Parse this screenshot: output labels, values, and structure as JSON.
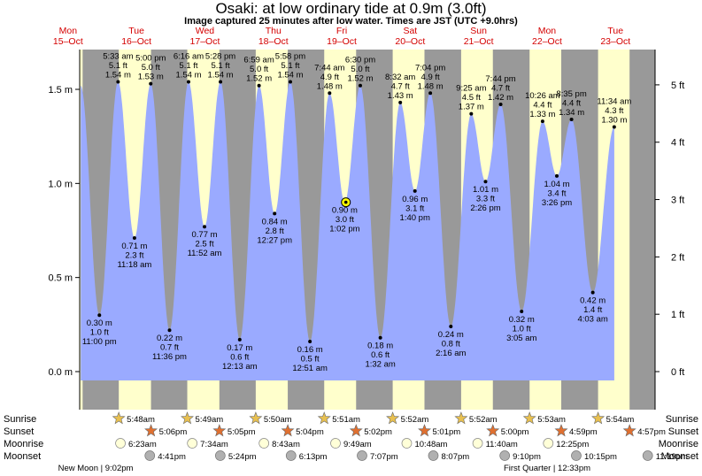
{
  "title": "Osaki: at low  ordinary tide at 0.9m (3.0ft)",
  "subtitle": "Image captured 25 minutes after low water. Times are JST (UTC +9.0hrs)",
  "chart_data": {
    "type": "area",
    "title": "Osaki: at low  ordinary tide at 0.9m (3.0ft)",
    "days": [
      {
        "name": "Mon",
        "date": "15–Oct"
      },
      {
        "name": "Tue",
        "date": "16–Oct"
      },
      {
        "name": "Wed",
        "date": "17–Oct"
      },
      {
        "name": "Thu",
        "date": "18–Oct"
      },
      {
        "name": "Fri",
        "date": "19–Oct"
      },
      {
        "name": "Sat",
        "date": "20–Oct"
      },
      {
        "name": "Sun",
        "date": "21–Oct"
      },
      {
        "name": "Mon",
        "date": "22–Oct"
      },
      {
        "name": "Tue",
        "date": "23–Oct"
      }
    ],
    "y_left": {
      "unit": "m",
      "lim": [
        -0.05,
        1.75
      ],
      "ticks": [
        0.0,
        0.5,
        1.0,
        1.5
      ],
      "labels": [
        "0.0 m",
        "0.5 m",
        "1.0 m",
        "1.5 m"
      ]
    },
    "y_right": {
      "unit": "ft",
      "ticks": [
        0,
        1,
        2,
        3,
        4,
        5
      ],
      "labels": [
        "0 ft",
        "1 ft",
        "2 ft",
        "3 ft",
        "4 ft",
        "5 ft"
      ]
    },
    "tides": [
      {
        "day": 0,
        "time": "23:00",
        "type": "low",
        "lines": [
          "0.30 m",
          "1.0 ft",
          "11:00 pm"
        ],
        "height": 0.3
      },
      {
        "day": 1,
        "time": "05:33",
        "type": "high",
        "lines": [
          "5:33 am",
          "5.1 ft",
          "1.54 m"
        ],
        "height": 1.54
      },
      {
        "day": 1,
        "time": "11:18",
        "type": "low",
        "lines": [
          "0.71 m",
          "2.3 ft",
          "11:18 am"
        ],
        "height": 0.71
      },
      {
        "day": 1,
        "time": "17:00",
        "type": "high",
        "lines": [
          "5:00 pm",
          "5.0 ft",
          "1.53 m"
        ],
        "height": 1.53
      },
      {
        "day": 1,
        "time": "23:36",
        "type": "low",
        "lines": [
          "0.22 m",
          "0.7 ft",
          "11:36 pm"
        ],
        "height": 0.22
      },
      {
        "day": 2,
        "time": "06:16",
        "type": "high",
        "lines": [
          "6:16 am",
          "5.1 ft",
          "1.54 m"
        ],
        "height": 1.54
      },
      {
        "day": 2,
        "time": "11:52",
        "type": "low",
        "lines": [
          "0.77 m",
          "2.5 ft",
          "11:52 am"
        ],
        "height": 0.77
      },
      {
        "day": 2,
        "time": "17:28",
        "type": "high",
        "lines": [
          "5:28 pm",
          "5.1 ft",
          "1.54 m"
        ],
        "height": 1.54
      },
      {
        "day": 3,
        "time": "00:13",
        "type": "low",
        "lines": [
          "0.17 m",
          "0.6 ft",
          "12:13 am"
        ],
        "height": 0.17
      },
      {
        "day": 3,
        "time": "06:59",
        "type": "high",
        "lines": [
          "6:59 am",
          "5.0 ft",
          "1.52 m"
        ],
        "height": 1.52
      },
      {
        "day": 3,
        "time": "12:27",
        "type": "low",
        "lines": [
          "0.84 m",
          "2.8 ft",
          "12:27 pm"
        ],
        "height": 0.84
      },
      {
        "day": 3,
        "time": "17:58",
        "type": "high",
        "lines": [
          "5:58 pm",
          "5.1 ft",
          "1.54 m"
        ],
        "height": 1.54
      },
      {
        "day": 4,
        "time": "00:51",
        "type": "low",
        "lines": [
          "0.16 m",
          "0.5 ft",
          "12:51 am"
        ],
        "height": 0.16
      },
      {
        "day": 4,
        "time": "07:44",
        "type": "high",
        "lines": [
          "7:44 am",
          "4.9 ft",
          "1.48 m"
        ],
        "height": 1.48
      },
      {
        "day": 4,
        "time": "13:02",
        "type": "low",
        "lines": [
          "0.90 m",
          "3.0 ft",
          "1:02 pm"
        ],
        "height": 0.9
      },
      {
        "day": 4,
        "time": "18:30",
        "type": "high",
        "lines": [
          "6:30 pm",
          "5.0 ft",
          "1.52 m"
        ],
        "height": 1.52
      },
      {
        "day": 5,
        "time": "01:32",
        "type": "low",
        "lines": [
          "0.18 m",
          "0.6 ft",
          "1:32 am"
        ],
        "height": 0.18
      },
      {
        "day": 5,
        "time": "08:32",
        "type": "high",
        "lines": [
          "8:32 am",
          "4.7 ft",
          "1.43 m"
        ],
        "height": 1.43
      },
      {
        "day": 5,
        "time": "13:40",
        "type": "low",
        "lines": [
          "0.96 m",
          "3.1 ft",
          "1:40 pm"
        ],
        "height": 0.96
      },
      {
        "day": 5,
        "time": "19:04",
        "type": "high",
        "lines": [
          "7:04 pm",
          "4.9 ft",
          "1.48 m"
        ],
        "height": 1.48
      },
      {
        "day": 6,
        "time": "02:16",
        "type": "low",
        "lines": [
          "0.24 m",
          "0.8 ft",
          "2:16 am"
        ],
        "height": 0.24
      },
      {
        "day": 6,
        "time": "09:25",
        "type": "high",
        "lines": [
          "9:25 am",
          "4.5 ft",
          "1.37 m"
        ],
        "height": 1.37
      },
      {
        "day": 6,
        "time": "14:26",
        "type": "low",
        "lines": [
          "1.01 m",
          "3.3 ft",
          "2:26 pm"
        ],
        "height": 1.01
      },
      {
        "day": 6,
        "time": "19:44",
        "type": "high",
        "lines": [
          "7:44 pm",
          "4.7 ft",
          "1.42 m"
        ],
        "height": 1.42
      },
      {
        "day": 7,
        "time": "03:05",
        "type": "low",
        "lines": [
          "0.32 m",
          "1.0 ft",
          "3:05 am"
        ],
        "height": 0.32
      },
      {
        "day": 7,
        "time": "10:26",
        "type": "high",
        "lines": [
          "10:26 am",
          "4.4 ft",
          "1.33 m"
        ],
        "height": 1.33
      },
      {
        "day": 7,
        "time": "15:26",
        "type": "low",
        "lines": [
          "1.04 m",
          "3.4 ft",
          "3:26 pm"
        ],
        "height": 1.04
      },
      {
        "day": 7,
        "time": "20:35",
        "type": "high",
        "lines": [
          "8:35 pm",
          "4.4 ft",
          "1.34 m"
        ],
        "height": 1.34
      },
      {
        "day": 8,
        "time": "04:03",
        "type": "low",
        "lines": [
          "0.42 m",
          "1.4 ft",
          "4:03 am"
        ],
        "height": 0.42
      },
      {
        "day": 8,
        "time": "11:34",
        "type": "high",
        "lines": [
          "11:34 am",
          "4.3 ft",
          "1.30 m"
        ],
        "height": 1.3
      }
    ],
    "current": {
      "height": 0.9,
      "day": 4,
      "time": "13:27"
    },
    "astro_rows": [
      "Sunrise",
      "Sunset",
      "Moonrise",
      "Moonset"
    ],
    "sunrise": [
      {
        "day": 1,
        "label": "5:48am"
      },
      {
        "day": 2,
        "label": "5:49am"
      },
      {
        "day": 3,
        "label": "5:50am"
      },
      {
        "day": 4,
        "label": "5:51am"
      },
      {
        "day": 5,
        "label": "5:52am"
      },
      {
        "day": 6,
        "label": "5:52am"
      },
      {
        "day": 7,
        "label": "5:53am"
      },
      {
        "day": 8,
        "label": "5:54am"
      }
    ],
    "sunset": [
      {
        "day": 1,
        "label": "5:06pm"
      },
      {
        "day": 2,
        "label": "5:05pm"
      },
      {
        "day": 3,
        "label": "5:04pm"
      },
      {
        "day": 4,
        "label": "5:02pm"
      },
      {
        "day": 5,
        "label": "5:01pm"
      },
      {
        "day": 6,
        "label": "5:00pm"
      },
      {
        "day": 7,
        "label": "4:59pm"
      },
      {
        "day": 8,
        "label": "4:57pm"
      }
    ],
    "moonrise": [
      {
        "day": 1,
        "label": "6:23am"
      },
      {
        "day": 2,
        "label": "7:34am"
      },
      {
        "day": 3,
        "label": "8:43am"
      },
      {
        "day": 4,
        "label": "9:49am"
      },
      {
        "day": 5,
        "label": "10:48am"
      },
      {
        "day": 6,
        "label": "11:40am"
      },
      {
        "day": 7,
        "label": "12:25pm"
      }
    ],
    "moonset": [
      {
        "day": 1,
        "label": "4:41pm"
      },
      {
        "day": 2,
        "label": "5:24pm"
      },
      {
        "day": 3,
        "label": "6:13pm"
      },
      {
        "day": 4,
        "label": "7:07pm"
      },
      {
        "day": 5,
        "label": "8:07pm"
      },
      {
        "day": 6,
        "label": "9:10pm"
      },
      {
        "day": 7,
        "label": "10:15pm"
      },
      {
        "day": 8,
        "label": "11:19pm"
      }
    ],
    "moon_phases": [
      "New Moon | 9:02pm",
      "First Quarter | 12:33pm"
    ],
    "colors": {
      "water": "#9aaaff",
      "night": "#999999",
      "day": "#ffffcc",
      "label": "#d40000",
      "sun": "#e8c050",
      "sunset": "#e07030",
      "moonrise": "#ffffd8",
      "moonset": "#b0b0b0",
      "marker": "#ffff00"
    }
  }
}
